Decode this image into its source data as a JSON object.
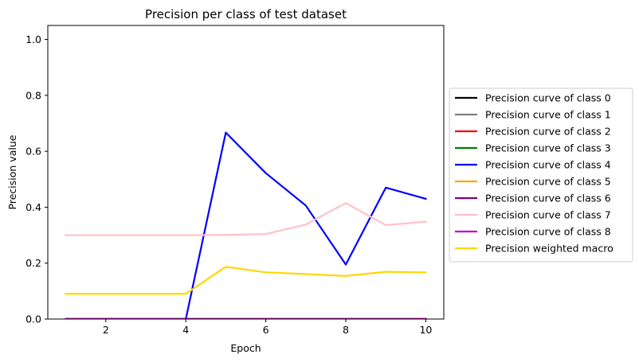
{
  "chart_data": {
    "type": "line",
    "title": "Precision per class of test dataset",
    "xlabel": "Epoch",
    "ylabel": "Precision value",
    "xlim": [
      0.55,
      10.45
    ],
    "ylim": [
      0,
      1.05
    ],
    "xticks": [
      2,
      4,
      6,
      8,
      10
    ],
    "yticks": [
      0.0,
      0.2,
      0.4,
      0.6,
      0.8,
      1.0
    ],
    "ytick_labels": [
      "0.0",
      "0.2",
      "0.4",
      "0.6",
      "0.8",
      "1.0"
    ],
    "grid": false,
    "legend_position": "outside-right",
    "x": [
      1,
      2,
      3,
      4,
      5,
      6,
      7,
      8,
      9,
      10
    ],
    "series": [
      {
        "name": "Precision curve of class 0",
        "color": "#000000",
        "values": [
          0,
          0,
          0,
          0,
          0,
          0,
          0,
          0,
          0,
          0
        ]
      },
      {
        "name": "Precision curve of class 1",
        "color": "#808080",
        "values": [
          0,
          0,
          0,
          0,
          0,
          0,
          0,
          0,
          0,
          0
        ]
      },
      {
        "name": "Precision curve of class 2",
        "color": "#ff0000",
        "values": [
          0,
          0,
          0,
          0,
          0,
          0,
          0,
          0,
          0,
          0
        ]
      },
      {
        "name": "Precision curve of class 3",
        "color": "#008000",
        "values": [
          0,
          0,
          0,
          0,
          0,
          0,
          0,
          0,
          0,
          0
        ]
      },
      {
        "name": "Precision curve of class 4",
        "color": "#0000ff",
        "values": [
          0,
          0,
          0,
          0,
          0.667,
          0.522,
          0.406,
          0.195,
          0.47,
          0.43
        ]
      },
      {
        "name": "Precision curve of class 5",
        "color": "#ffa500",
        "values": [
          0,
          0,
          0,
          0,
          0,
          0,
          0,
          0,
          0,
          0
        ]
      },
      {
        "name": "Precision curve of class 6",
        "color": "#800080",
        "values": [
          0,
          0,
          0,
          0,
          0,
          0,
          0,
          0,
          0,
          0
        ]
      },
      {
        "name": "Precision curve of class 7",
        "color": "#ffc0cb",
        "values": [
          0.3,
          0.3,
          0.3,
          0.3,
          0.301,
          0.304,
          0.338,
          0.415,
          0.336,
          0.348
        ]
      },
      {
        "name": "Precision curve of class 8",
        "color": "#c000c0",
        "values": [
          0,
          0,
          0,
          0,
          0,
          0,
          0,
          0,
          0,
          0
        ]
      },
      {
        "name": "Precision weighted macro",
        "color": "#ffd700",
        "values": [
          0.09,
          0.09,
          0.09,
          0.09,
          0.187,
          0.167,
          0.161,
          0.154,
          0.169,
          0.167
        ]
      }
    ]
  }
}
